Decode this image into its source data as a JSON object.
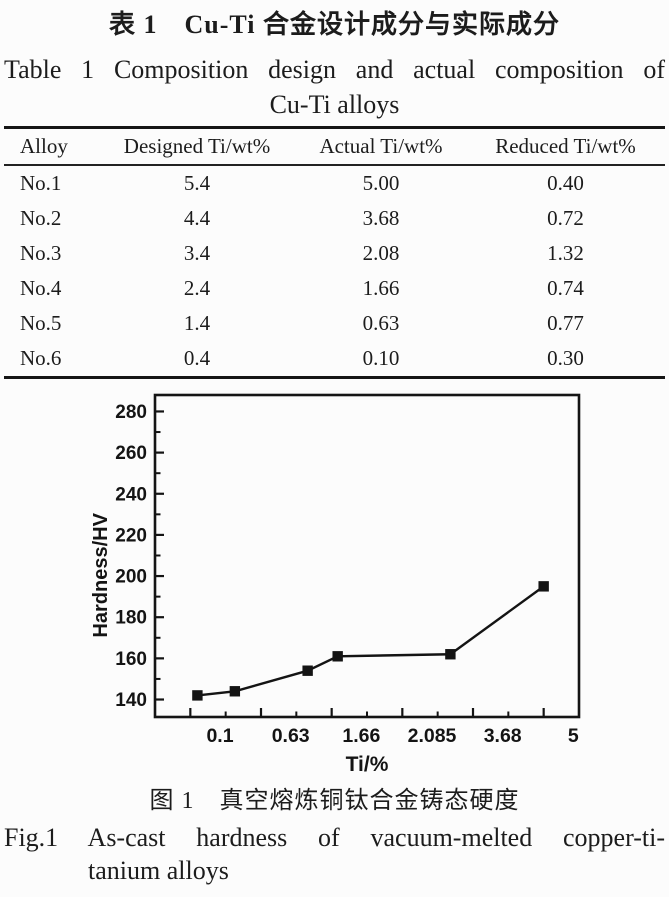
{
  "page": {
    "background": "#fcfcfc",
    "ink_color": "#1c1c1c",
    "rule_color": "#161616"
  },
  "table_section": {
    "title_cn": "表 1　Cu-Ti 合金设计成分与实际成分",
    "title_en_line1": "Table 1 Composition design and actual composition of",
    "title_en_line2": "Cu-Ti alloys",
    "columns": [
      "Alloy",
      "Designed Ti/wt%",
      "Actual Ti/wt%",
      "Reduced Ti/wt%"
    ],
    "rows": [
      {
        "alloy": "No.1",
        "designed": "5.4",
        "actual": "5.00",
        "reduced": "0.40"
      },
      {
        "alloy": "No.2",
        "designed": "4.4",
        "actual": "3.68",
        "reduced": "0.72"
      },
      {
        "alloy": "No.3",
        "designed": "3.4",
        "actual": "2.08",
        "reduced": "1.32"
      },
      {
        "alloy": "No.4",
        "designed": "2.4",
        "actual": "1.66",
        "reduced": "0.74"
      },
      {
        "alloy": "No.5",
        "designed": "1.4",
        "actual": "0.63",
        "reduced": "0.77"
      },
      {
        "alloy": "No.6",
        "designed": "0.4",
        "actual": "0.10",
        "reduced": "0.30"
      }
    ]
  },
  "chart_data": {
    "type": "line",
    "title": "",
    "xlabel": "Ti/%",
    "ylabel": "Hardness/HV",
    "x": [
      0.1,
      0.63,
      1.66,
      2.085,
      3.68,
      5
    ],
    "y": [
      142,
      144,
      154,
      161,
      162,
      195
    ],
    "x_tick_labels": [
      "0.1",
      "0.63",
      "1.66",
      "2.085",
      "3.68",
      "5"
    ],
    "x_major_ticks": [
      0,
      1,
      2,
      3,
      4,
      5
    ],
    "x_minor_ticks": [
      0.5,
      1.5,
      2.5,
      3.5,
      4.5,
      5.5
    ],
    "y_major_ticks": [
      140,
      160,
      180,
      200,
      220,
      240,
      260,
      280
    ],
    "y_minor_ticks": [
      150,
      170,
      190,
      210,
      230,
      250,
      270
    ],
    "xlim": [
      -0.5,
      5.5
    ],
    "ylim": [
      131.5,
      288
    ],
    "marker": "filled-square",
    "line_color": "#141414",
    "marker_color": "#141414",
    "grid": false,
    "legend": null
  },
  "figure_caption": {
    "cn": "图 1　真空熔炼铜钛合金铸态硬度",
    "en_line1": "Fig.1 As-cast hardness of vacuum-melted copper-ti-",
    "en_line2": "tanium alloys"
  }
}
